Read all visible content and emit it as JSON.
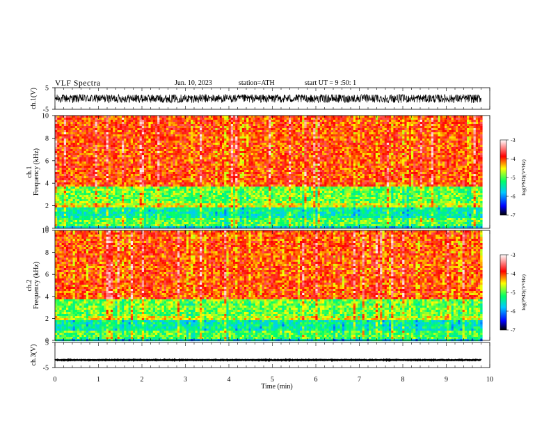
{
  "header": {
    "title": "VLF  Spectra",
    "date": "Jun. 10, 2023",
    "station": "station=ATH",
    "start_ut": "start  UT  =   9  :50: 1"
  },
  "chart_data": [
    {
      "type": "line",
      "name": "ch1-waveform",
      "ylabel": "ch.1(V)",
      "ylim": [
        -5,
        5
      ],
      "yticks": [
        "5",
        "-5"
      ],
      "xlim": [
        0,
        10
      ],
      "x_extent": [
        0,
        9.8
      ],
      "description_values": {
        "mean": 0,
        "amplitude_range": [
          -2.2,
          1.8
        ]
      }
    },
    {
      "type": "heatmap",
      "name": "ch1-spectrogram",
      "ylabel": "ch.1\nFrequency  (kHz)",
      "ylim": [
        0,
        10
      ],
      "yticks": [
        "0",
        "2",
        "4",
        "6",
        "8",
        "10"
      ],
      "xlim": [
        0,
        10
      ],
      "x_extent": [
        0,
        9.8
      ],
      "bands_khz": [
        {
          "from": 0,
          "to": 0.3,
          "level": -5.6
        },
        {
          "from": 0.3,
          "to": 1.0,
          "level": -5.0
        },
        {
          "from": 1.0,
          "to": 1.9,
          "level": -5.4
        },
        {
          "from": 1.9,
          "to": 2.3,
          "level": -4.6
        },
        {
          "from": 2.3,
          "to": 3.8,
          "level": -4.9
        },
        {
          "from": 3.8,
          "to": 10,
          "level": -4.0
        }
      ],
      "colorbar": {
        "label": "log(PSD)(V²/Hz)",
        "ticks": [
          "-3",
          "-4",
          "-5",
          "-6",
          "-7"
        ],
        "range": [
          -7,
          -3
        ]
      }
    },
    {
      "type": "heatmap",
      "name": "ch2-spectrogram",
      "ylabel": "ch.2\nFrequency  (kHz)",
      "ylim": [
        0,
        10
      ],
      "yticks": [
        "0",
        "2",
        "4",
        "6",
        "8",
        "10"
      ],
      "xlim": [
        0,
        10
      ],
      "x_extent": [
        0,
        9.8
      ],
      "bands_khz": [
        {
          "from": 0,
          "to": 0.3,
          "level": -5.6
        },
        {
          "from": 0.3,
          "to": 1.0,
          "level": -5.0
        },
        {
          "from": 1.0,
          "to": 1.9,
          "level": -5.4
        },
        {
          "from": 1.9,
          "to": 2.3,
          "level": -4.6
        },
        {
          "from": 2.3,
          "to": 3.8,
          "level": -4.9
        },
        {
          "from": 3.8,
          "to": 10,
          "level": -4.0
        }
      ],
      "colorbar": {
        "label": "log(PSD)(V²/Hz)",
        "ticks": [
          "-3",
          "-4",
          "-5",
          "-6",
          "-7"
        ],
        "range": [
          -7,
          -3
        ]
      }
    },
    {
      "type": "line",
      "name": "ch3-waveform",
      "ylabel": "ch.3(V)",
      "ylim": [
        -5,
        5
      ],
      "yticks": [
        "5",
        "-5"
      ],
      "xlim": [
        0,
        10
      ],
      "x_extent": [
        0,
        9.8
      ],
      "description_values": {
        "mean": -2,
        "amplitude_range": [
          -2.2,
          -1.8
        ]
      }
    }
  ],
  "xaxis": {
    "label": "Time  (min)",
    "ticks": [
      "0",
      "1",
      "2",
      "3",
      "4",
      "5",
      "6",
      "7",
      "8",
      "9",
      "10"
    ]
  },
  "colors": {
    "scale": [
      "#000000",
      "#0000ff",
      "#00c8ff",
      "#00ff66",
      "#ffff00",
      "#ff0000",
      "#ffffff"
    ]
  }
}
